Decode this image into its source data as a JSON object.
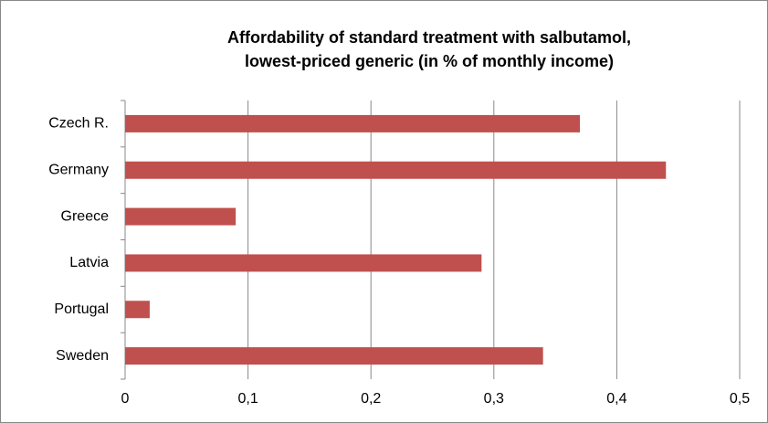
{
  "chart_data": {
    "type": "hbar",
    "title": [
      "Affordability of standard treatment with salbutamol,",
      "lowest-priced generic (in % of monthly income)"
    ],
    "categories": [
      "Czech R.",
      "Germany",
      "Greece",
      "Latvia",
      "Portugal",
      "Sweden"
    ],
    "values": [
      0.37,
      0.44,
      0.09,
      0.29,
      0.02,
      0.34
    ],
    "color": "#c0504d",
    "xlim": [
      0,
      0.5
    ],
    "xticks": [
      0,
      {
        "value": 0.1,
        "label": "0,1"
      },
      {
        "value": 0.2,
        "label": "0,2"
      },
      {
        "value": 0.3,
        "label": "0,3"
      },
      {
        "value": 0.4,
        "label": "0,4"
      },
      {
        "value": 0.5,
        "label": "0,5"
      }
    ],
    "grid": true
  }
}
